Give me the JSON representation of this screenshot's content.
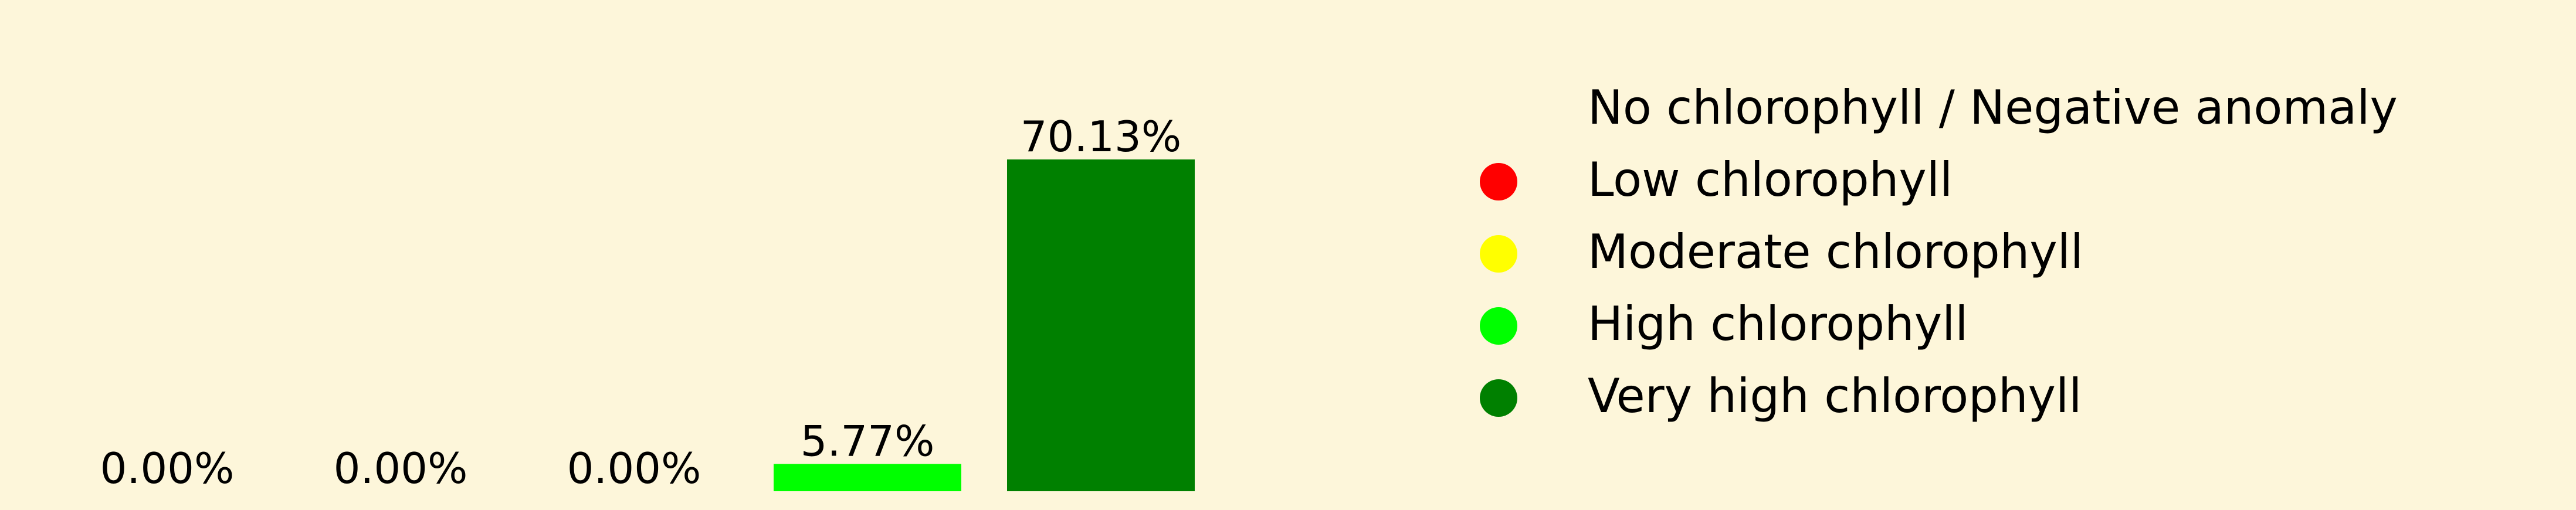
{
  "chart_data": {
    "type": "bar",
    "categories": [
      "No chlorophyll / Negative anomaly",
      "Low chlorophyll",
      "Moderate chlorophyll",
      "High chlorophyll",
      "Very high chlorophyll"
    ],
    "values": [
      0.0,
      0.0,
      0.0,
      5.77,
      70.13
    ],
    "data_labels": [
      "0.00%",
      "0.00%",
      "0.00%",
      "5.77%",
      "70.13%"
    ],
    "colors": [
      "#fdf6da",
      "#ff0000",
      "#ffff00",
      "#00ff00",
      "#008000"
    ],
    "ylim": [
      0,
      70.13
    ],
    "grid": false,
    "axes_visible": false,
    "legend_position": "right"
  }
}
